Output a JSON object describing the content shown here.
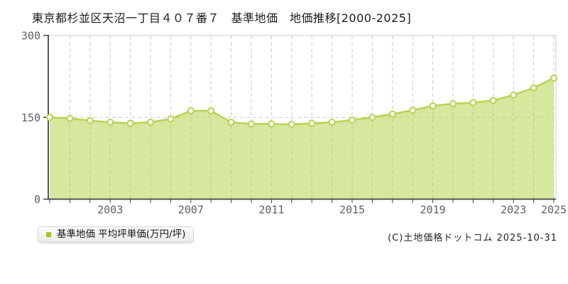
{
  "copyright": "(C)土地価格ドットコム 2025-10-31",
  "legend": {
    "label": "基準地価 平均坪単価(万円/坪)",
    "marker_color": "#a2c617"
  },
  "chart_data": {
    "type": "area",
    "title": "東京都杉並区天沼一丁目４０７番７　基準地価　地価推移[2000-2025]",
    "series_name": "基準地価 平均坪単価(万円/坪)",
    "unit": "万円/坪",
    "x": [
      2000,
      2001,
      2002,
      2003,
      2004,
      2005,
      2006,
      2007,
      2008,
      2009,
      2010,
      2011,
      2012,
      2013,
      2014,
      2015,
      2016,
      2017,
      2018,
      2019,
      2020,
      2021,
      2022,
      2023,
      2024,
      2025
    ],
    "values": [
      150,
      148,
      144,
      141,
      139,
      141,
      147,
      162,
      162,
      141,
      138,
      138,
      137,
      139,
      141,
      145,
      150,
      156,
      163,
      171,
      175,
      177,
      181,
      191,
      204,
      222
    ],
    "ylim": [
      0,
      300
    ],
    "yticks": [
      0,
      150,
      300
    ],
    "xticks_labeled": [
      2003,
      2007,
      2011,
      2015,
      2019,
      2023,
      2025
    ],
    "grid": {
      "vertical": "dashed line at every year",
      "horizontal": "dashed line at 150"
    },
    "legend_position": "bottom-left",
    "colors": {
      "line": "#b5d44f",
      "area_fill": "#b5d44f",
      "area_opacity": 0.55,
      "marker_fill": "#fffef8",
      "grid": "#c9c9c9",
      "border": "#cccccc",
      "axis": "#444444",
      "tick_text": "#5f5f5f"
    }
  }
}
